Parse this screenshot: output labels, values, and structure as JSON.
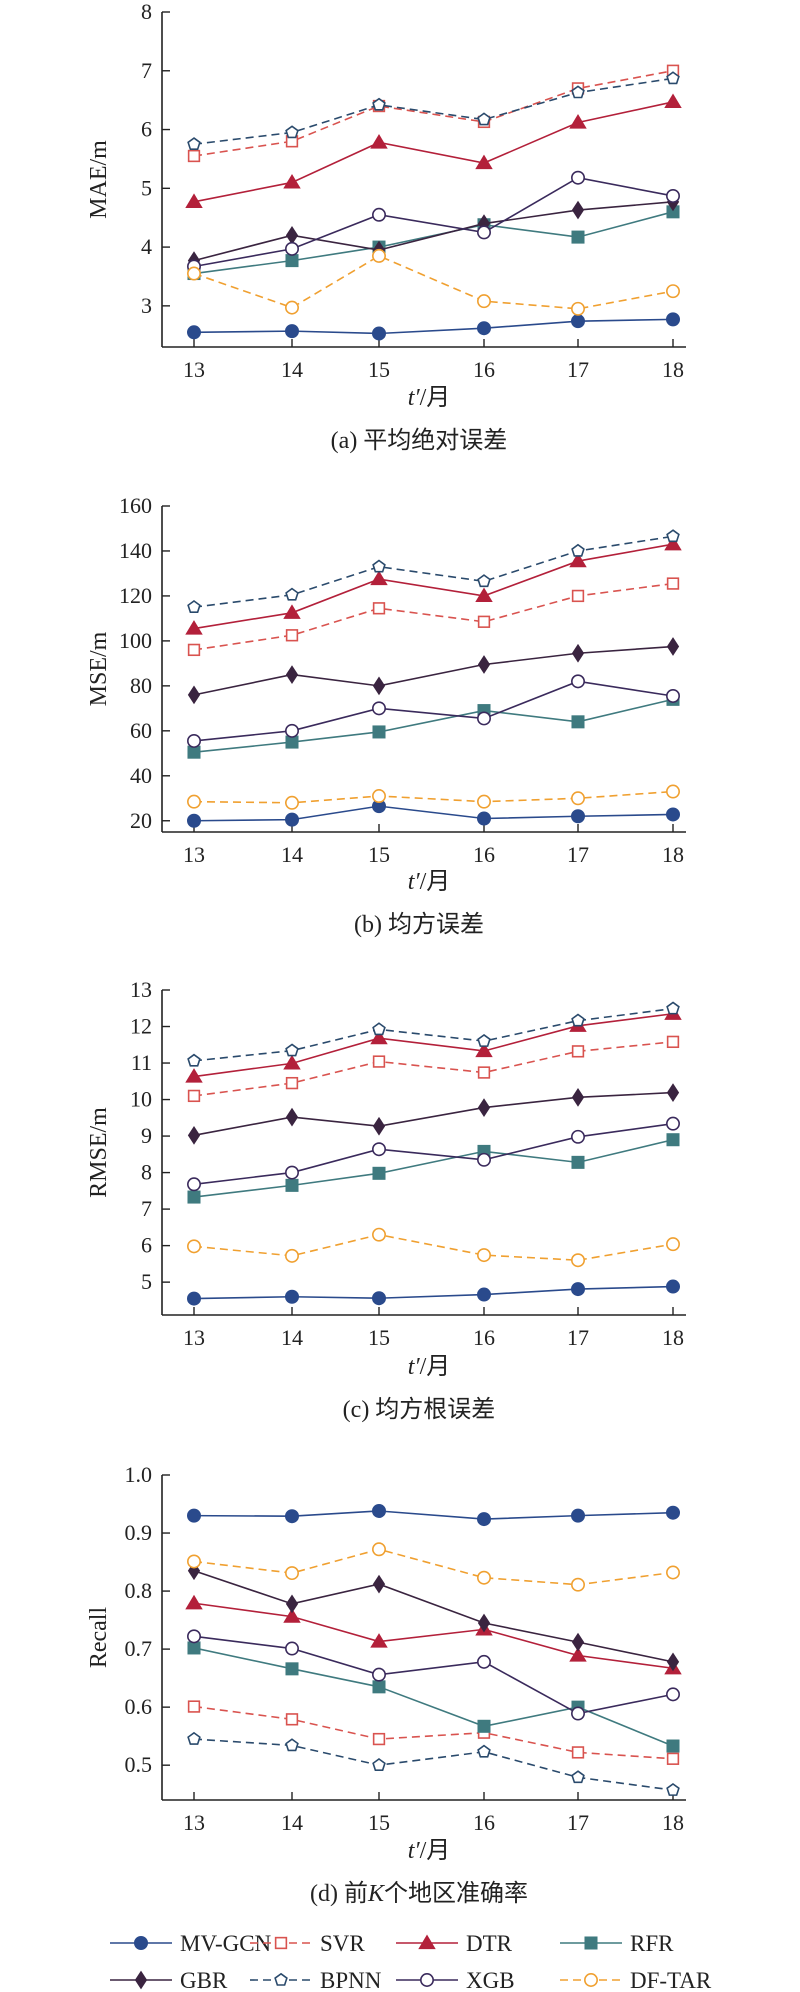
{
  "figure": {
    "legend": {
      "position": "bottom"
    }
  },
  "series_styles": [
    {
      "name": "MV-GCN",
      "color": "#2a4a8c",
      "dash": "solid",
      "marker": "circle-filled"
    },
    {
      "name": "SVR",
      "color": "#d9534f",
      "dash": "dashed",
      "marker": "square-open"
    },
    {
      "name": "DTR",
      "color": "#b3203a",
      "dash": "solid",
      "marker": "triangle-filled"
    },
    {
      "name": "RFR",
      "color": "#3f7a7f",
      "dash": "solid",
      "marker": "square-filled"
    },
    {
      "name": "GBR",
      "color": "#3a2440",
      "dash": "solid",
      "marker": "diamond-filled"
    },
    {
      "name": "BPNN",
      "color": "#2a4a6c",
      "dash": "dashed",
      "marker": "pentagon-open"
    },
    {
      "name": "XGB",
      "color": "#3a2a5c",
      "dash": "solid",
      "marker": "circle-open"
    },
    {
      "name": "DF-TAR",
      "color": "#f0a030",
      "dash": "dashed",
      "marker": "circle-open"
    }
  ],
  "chart_data": [
    {
      "type": "line",
      "caption": "(a) 平均绝对误差",
      "ylabel": "MAE/m",
      "xlabel_var": "t′",
      "xlabel_unit": "/月",
      "x": [
        13,
        14,
        15,
        16,
        17,
        18
      ],
      "ylim": [
        2.3,
        8
      ],
      "yticks": [
        3,
        4,
        5,
        6,
        7,
        8
      ],
      "ytick_labels": [
        "3",
        "4",
        "5",
        "6",
        "7",
        "8"
      ],
      "series": [
        {
          "name": "MV-GCN",
          "values": [
            2.55,
            2.57,
            2.53,
            2.62,
            2.74,
            2.77
          ]
        },
        {
          "name": "SVR",
          "values": [
            5.55,
            5.8,
            6.4,
            6.13,
            6.7,
            7.0
          ]
        },
        {
          "name": "DTR",
          "values": [
            4.77,
            5.1,
            5.78,
            5.43,
            6.12,
            6.47
          ]
        },
        {
          "name": "RFR",
          "values": [
            3.55,
            3.77,
            4.0,
            4.38,
            4.17,
            4.6
          ]
        },
        {
          "name": "GBR",
          "values": [
            3.77,
            4.2,
            3.95,
            4.4,
            4.63,
            4.77
          ]
        },
        {
          "name": "BPNN",
          "values": [
            5.75,
            5.95,
            6.42,
            6.17,
            6.63,
            6.87
          ]
        },
        {
          "name": "XGB",
          "values": [
            3.67,
            3.97,
            4.55,
            4.25,
            5.18,
            4.87
          ]
        },
        {
          "name": "DF-TAR",
          "values": [
            3.55,
            2.97,
            3.85,
            3.08,
            2.95,
            3.25
          ]
        }
      ]
    },
    {
      "type": "line",
      "caption": "(b) 均方误差",
      "ylabel": "MSE/m",
      "xlabel_var": "t′",
      "xlabel_unit": "/月",
      "x": [
        13,
        14,
        15,
        16,
        17,
        18
      ],
      "ylim": [
        15,
        160
      ],
      "yticks": [
        20,
        40,
        60,
        80,
        100,
        120,
        140,
        160
      ],
      "ytick_labels": [
        "20",
        "40",
        "60",
        "80",
        "100",
        "120",
        "140",
        "160"
      ],
      "series": [
        {
          "name": "MV-GCN",
          "values": [
            20,
            20.5,
            26.5,
            21,
            22,
            22.8
          ]
        },
        {
          "name": "SVR",
          "values": [
            96,
            102.5,
            114.5,
            108.5,
            120,
            125.5
          ]
        },
        {
          "name": "DTR",
          "values": [
            105.5,
            112.5,
            127.5,
            120,
            135.5,
            143
          ]
        },
        {
          "name": "RFR",
          "values": [
            50.5,
            55,
            59.5,
            69,
            64,
            74
          ]
        },
        {
          "name": "GBR",
          "values": [
            76,
            85,
            80,
            89.5,
            94.5,
            97.5
          ]
        },
        {
          "name": "BPNN",
          "values": [
            115,
            120.5,
            133,
            126.5,
            140,
            146.5
          ]
        },
        {
          "name": "XGB",
          "values": [
            55.5,
            60,
            70,
            65.5,
            82,
            75.5
          ]
        },
        {
          "name": "DF-TAR",
          "values": [
            28.5,
            28,
            31,
            28.5,
            30,
            33
          ]
        }
      ]
    },
    {
      "type": "line",
      "caption": "(c) 均方根误差",
      "ylabel": "RMSE/m",
      "xlabel_var": "t′",
      "xlabel_unit": "/月",
      "x": [
        13,
        14,
        15,
        16,
        17,
        18
      ],
      "ylim": [
        4.1,
        13
      ],
      "yticks": [
        5,
        6,
        7,
        8,
        9,
        10,
        11,
        12,
        13
      ],
      "ytick_labels": [
        "5",
        "6",
        "7",
        "8",
        "9",
        "10",
        "11",
        "12",
        "13"
      ],
      "series": [
        {
          "name": "MV-GCN",
          "values": [
            4.55,
            4.6,
            4.56,
            4.66,
            4.81,
            4.88
          ]
        },
        {
          "name": "SVR",
          "values": [
            10.1,
            10.45,
            11.04,
            10.74,
            11.32,
            11.58
          ]
        },
        {
          "name": "DTR",
          "values": [
            10.63,
            10.99,
            11.68,
            11.33,
            12.02,
            12.35
          ]
        },
        {
          "name": "RFR",
          "values": [
            7.33,
            7.65,
            7.98,
            8.58,
            8.28,
            8.9
          ]
        },
        {
          "name": "GBR",
          "values": [
            9.02,
            9.52,
            9.27,
            9.78,
            10.06,
            10.19
          ]
        },
        {
          "name": "BPNN",
          "values": [
            11.06,
            11.34,
            11.92,
            11.6,
            12.16,
            12.49
          ]
        },
        {
          "name": "XGB",
          "values": [
            7.68,
            8.0,
            8.64,
            8.35,
            8.98,
            9.34
          ]
        },
        {
          "name": "DF-TAR",
          "values": [
            5.98,
            5.72,
            6.3,
            5.74,
            5.6,
            6.04
          ]
        }
      ]
    },
    {
      "type": "line",
      "caption_pre": "(d) 前",
      "caption_var": "K",
      "caption_post": "个地区准确率",
      "ylabel": "Recall",
      "xlabel_var": "t′",
      "xlabel_unit": "/月",
      "x": [
        13,
        14,
        15,
        16,
        17,
        18
      ],
      "ylim": [
        0.44,
        1.0
      ],
      "yticks": [
        0.5,
        0.6,
        0.7,
        0.8,
        0.9,
        1.0
      ],
      "ytick_labels": [
        "0.5",
        "0.6",
        "0.7",
        "0.8",
        "0.9",
        "1.0"
      ],
      "series": [
        {
          "name": "MV-GCN",
          "values": [
            0.93,
            0.929,
            0.938,
            0.924,
            0.93,
            0.935
          ]
        },
        {
          "name": "SVR",
          "values": [
            0.601,
            0.579,
            0.545,
            0.556,
            0.522,
            0.511
          ]
        },
        {
          "name": "DTR",
          "values": [
            0.779,
            0.756,
            0.713,
            0.734,
            0.689,
            0.667
          ]
        },
        {
          "name": "RFR",
          "values": [
            0.702,
            0.666,
            0.635,
            0.567,
            0.6,
            0.533
          ]
        },
        {
          "name": "GBR",
          "values": [
            0.835,
            0.778,
            0.812,
            0.745,
            0.712,
            0.678
          ]
        },
        {
          "name": "BPNN",
          "values": [
            0.545,
            0.534,
            0.5,
            0.523,
            0.479,
            0.457
          ]
        },
        {
          "name": "XGB",
          "values": [
            0.722,
            0.701,
            0.656,
            0.678,
            0.589,
            0.622
          ]
        },
        {
          "name": "DF-TAR",
          "values": [
            0.851,
            0.831,
            0.872,
            0.823,
            0.811,
            0.832
          ]
        }
      ]
    }
  ]
}
